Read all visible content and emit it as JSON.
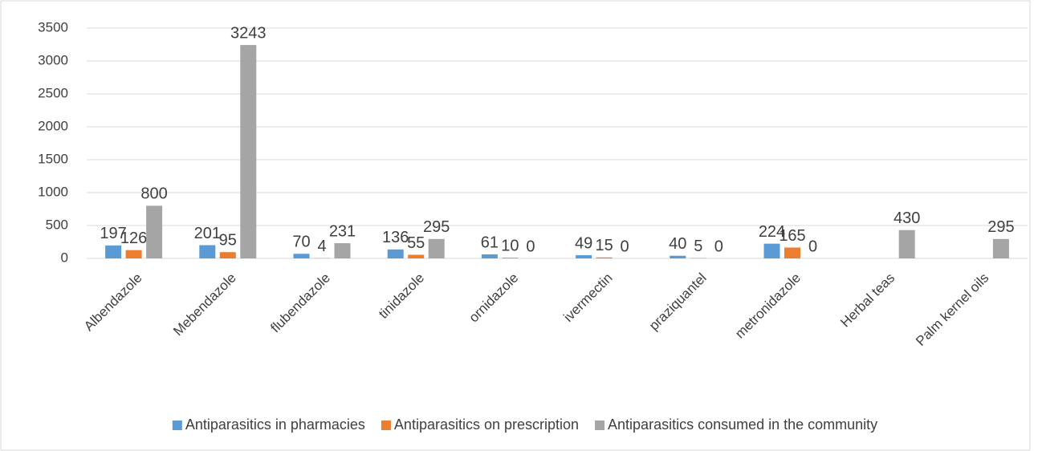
{
  "chart_data": {
    "type": "bar",
    "categories": [
      "Albendazole",
      "Mebendazole",
      "flubendazole",
      "tinidazole",
      "ornidazole",
      "ivermectin",
      "praziquantel",
      "metronidazole",
      "Herbal teas",
      "Palm kernel oils"
    ],
    "series": [
      {
        "name": "Antiparasitics in pharmacies",
        "color": "#5b9bd5",
        "values": [
          197,
          201,
          70,
          136,
          61,
          49,
          40,
          224,
          null,
          null
        ]
      },
      {
        "name": "Antiparasitics on prescription",
        "color": "#ed7d31",
        "values": [
          126,
          95,
          4,
          55,
          10,
          15,
          5,
          165,
          null,
          null
        ]
      },
      {
        "name": "Antiparasitics consumed in the community",
        "color": "#a5a5a5",
        "values": [
          800,
          3243,
          231,
          295,
          0,
          0,
          0,
          0,
          430,
          295
        ]
      }
    ],
    "ylim": [
      0,
      3500
    ],
    "yticks": [
      0,
      500,
      1000,
      1500,
      2000,
      2500,
      3000,
      3500
    ],
    "grid": true,
    "legend": "bottom"
  }
}
